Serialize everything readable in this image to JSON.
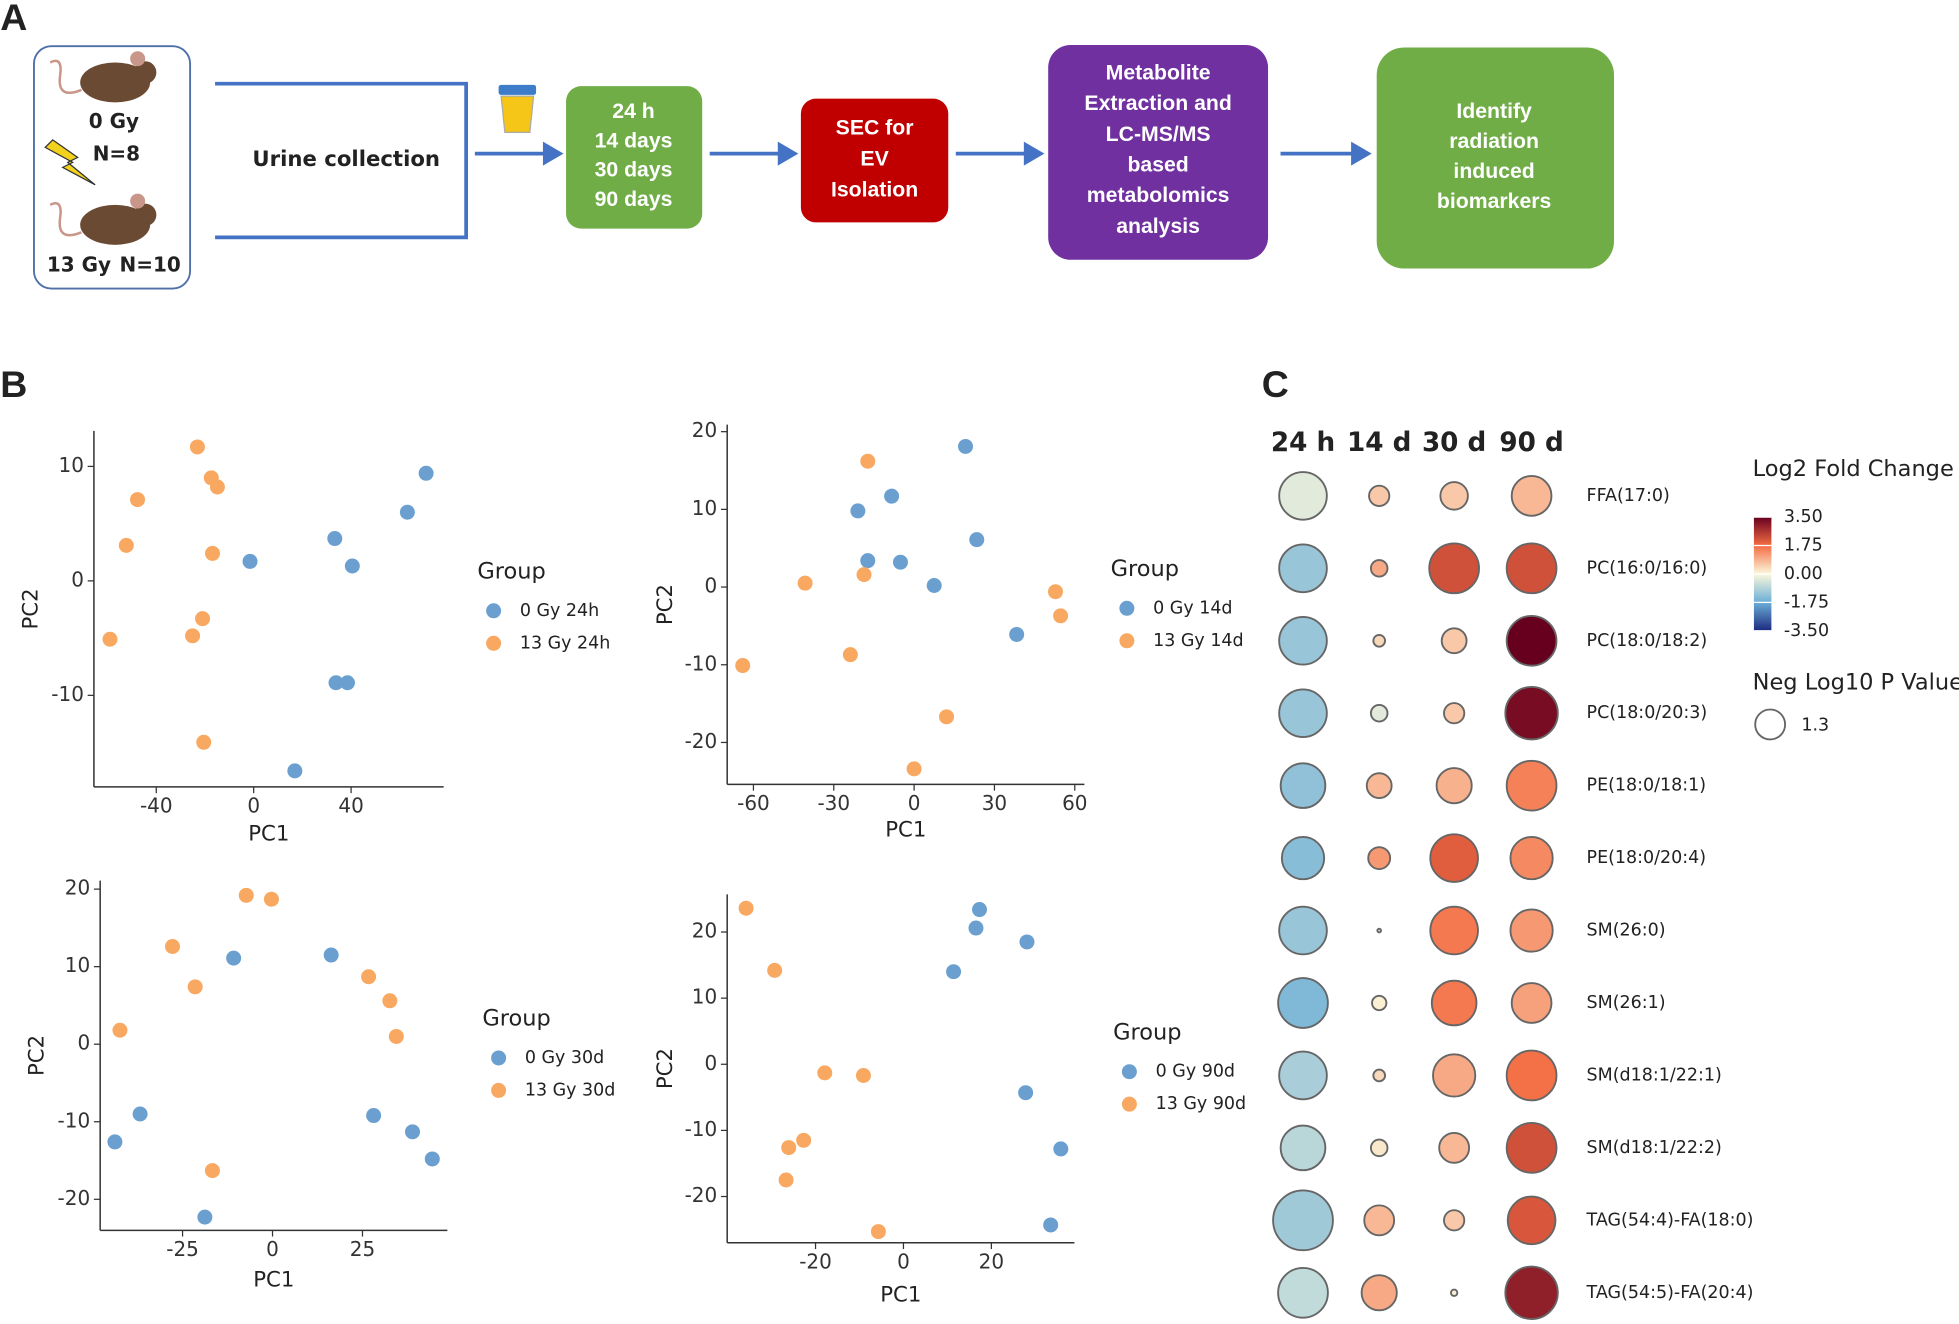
{
  "panel_labels": [
    "A",
    "B",
    "C"
  ],
  "panel_a": {
    "groups": [
      {
        "dose": "0 Gy",
        "n": "N=8"
      },
      {
        "dose": "13 Gy",
        "n": "N=10"
      }
    ],
    "collection": "Urine collection",
    "timepoints": [
      "24 h",
      "14 days",
      "30 days",
      "90 days"
    ],
    "isolation": [
      "SEC for",
      "EV",
      "Isolation"
    ],
    "analysis": [
      "Metabolite",
      "Extraction and",
      "LC-MS/MS",
      "based",
      "metabolomics",
      "analysis"
    ],
    "outcome": [
      "Identify",
      "radiation",
      "induced",
      "biomarkers"
    ]
  },
  "chart_data": [
    {
      "type": "scatter",
      "xlabel": "PC1",
      "ylabel": "PC2",
      "legend_title": "Group",
      "xlim": [
        -65.6,
        78
      ],
      "ylim": [
        -18,
        13.1
      ],
      "xticks": [
        -40,
        0,
        40
      ],
      "yticks": [
        -10,
        0,
        10
      ],
      "series": [
        {
          "name": "0 Gy 24h",
          "color": "#6a9fcf",
          "x": [
            70.8,
            63.1,
            33.3,
            40.5,
            -1.5,
            33.8,
            38.5,
            16.9
          ],
          "values": [
            9.4,
            6.0,
            3.7,
            1.3,
            1.7,
            -8.9,
            -8.9,
            -16.6
          ]
        },
        {
          "name": "13 Gy 24h",
          "color": "#f8a860",
          "x": [
            -23.1,
            -17.4,
            -14.9,
            -47.7,
            -52.3,
            -16.9,
            -21.0,
            -25.1,
            -59.0,
            -20.5
          ],
          "values": [
            11.7,
            9.0,
            8.2,
            7.1,
            3.1,
            2.4,
            -3.3,
            -4.8,
            -5.1,
            -14.1
          ]
        }
      ]
    },
    {
      "type": "scatter",
      "xlabel": "PC1",
      "ylabel": "PC2",
      "legend_title": "Group",
      "xlim": [
        -69.8,
        63.6
      ],
      "ylim": [
        -25.4,
        20.9
      ],
      "xticks": [
        -60,
        -30,
        0,
        30,
        60
      ],
      "yticks": [
        -20,
        -10,
        0,
        10,
        20
      ],
      "series": [
        {
          "name": "0 Gy 14d",
          "color": "#6a9fcf",
          "x": [
            19.2,
            -8.4,
            -21.0,
            23.4,
            -17.3,
            -5.1,
            7.5,
            38.3
          ],
          "values": [
            18.1,
            11.7,
            9.8,
            6.1,
            3.4,
            3.2,
            0.2,
            -6.1
          ]
        },
        {
          "name": "13 Gy 14d",
          "color": "#f8a860",
          "x": [
            -17.3,
            -40.7,
            -18.7,
            52.8,
            54.7,
            -23.8,
            -64.0,
            12.1,
            0
          ],
          "values": [
            16.2,
            0.5,
            1.6,
            -0.6,
            -3.7,
            -8.7,
            -10.1,
            -16.7,
            -23.4
          ]
        }
      ]
    },
    {
      "type": "scatter",
      "xlabel": "PC1",
      "ylabel": "PC2",
      "legend_title": "Group",
      "xlim": [
        -47.9,
        48.6
      ],
      "ylim": [
        -24.0,
        21.1
      ],
      "xticks": [
        -25,
        0,
        25
      ],
      "yticks": [
        -20,
        -10,
        0,
        10,
        20
      ],
      "series": [
        {
          "name": "0 Gy 30d",
          "color": "#6a9fcf",
          "x": [
            -10.8,
            16.3,
            28.1,
            38.9,
            44.4,
            -36.8,
            -43.8,
            -18.8
          ],
          "values": [
            11.1,
            11.5,
            -9.2,
            -11.3,
            -14.8,
            -9.0,
            -12.6,
            -22.3
          ]
        },
        {
          "name": "13 Gy 30d",
          "color": "#f8a860",
          "x": [
            -7.3,
            -0.3,
            -27.8,
            -21.5,
            26.7,
            32.6,
            34.4,
            -42.4,
            -16.7
          ],
          "values": [
            19.2,
            18.7,
            12.6,
            7.4,
            8.7,
            5.6,
            1.0,
            1.8,
            -16.3
          ]
        }
      ]
    },
    {
      "type": "scatter",
      "xlabel": "PC1",
      "ylabel": "PC2",
      "legend_title": "Group",
      "xlim": [
        -40.1,
        38.9
      ],
      "ylim": [
        -27.0,
        25.7
      ],
      "xticks": [
        -20,
        0,
        20
      ],
      "yticks": [
        -20,
        -10,
        0,
        10,
        20
      ],
      "series": [
        {
          "name": "0 Gy 90d",
          "color": "#6a9fcf",
          "x": [
            17.3,
            16.5,
            28.1,
            11.4,
            27.8,
            35.8,
            33.5
          ],
          "values": [
            23.4,
            20.6,
            18.5,
            14.0,
            -4.3,
            -12.8,
            -24.3
          ]
        },
        {
          "name": "13 Gy 90d",
          "color": "#f8a860",
          "x": [
            -35.8,
            -29.3,
            -17.9,
            -9.1,
            -22.7,
            -26.1,
            -26.7,
            -5.7
          ],
          "values": [
            23.6,
            14.2,
            -1.3,
            -1.7,
            -11.5,
            -12.6,
            -17.5,
            -25.3
          ]
        }
      ]
    },
    {
      "type": "bubble",
      "columns": [
        "24 h",
        "14 d",
        "30 d",
        "90 d"
      ],
      "rows": [
        "FFA(17:0)",
        "PC(16:0/16:0)",
        "PC(18:0/18:2)",
        "PC(18:0/20:3)",
        "PE(18:0/18:1)",
        "PE(18:0/20:4)",
        "SM(26:0)",
        "SM(26:1)",
        "SM(d18:1/22:1)",
        "SM(d18:1/22:2)",
        "TAG(54:4)-FA(18:0)",
        "TAG(54:5)-FA(20:4)"
      ],
      "values": [
        [
          -0.3,
          0.6,
          0.6,
          0.8
        ],
        [
          -1.2,
          1.0,
          2.2,
          2.2
        ],
        [
          -1.2,
          0.4,
          0.6,
          3.5
        ],
        [
          -1.2,
          -0.3,
          0.6,
          3.3
        ],
        [
          -1.3,
          0.8,
          0.9,
          1.5
        ],
        [
          -1.4,
          1.2,
          2.0,
          1.4
        ],
        [
          -1.2,
          0.5,
          1.6,
          1.2
        ],
        [
          -1.5,
          0.1,
          1.6,
          1.1
        ],
        [
          -1.0,
          0.4,
          1.0,
          1.7
        ],
        [
          -0.8,
          0.2,
          0.8,
          2.2
        ],
        [
          -1.1,
          0.8,
          0.6,
          2.1
        ],
        [
          -0.7,
          1.0,
          0.1,
          3.0
        ]
      ],
      "sizes": [
        [
          3.3,
          0.6,
          1.1,
          2.3
        ],
        [
          3.3,
          0.4,
          3.6,
          3.6
        ],
        [
          3.3,
          0.2,
          0.9,
          3.6
        ],
        [
          3.3,
          0.4,
          0.6,
          4.0
        ],
        [
          2.9,
          0.9,
          1.8,
          3.6
        ],
        [
          2.6,
          0.7,
          3.3,
          2.6
        ],
        [
          3.3,
          0.02,
          3.3,
          2.6
        ],
        [
          3.6,
          0.3,
          2.9,
          2.3
        ],
        [
          3.3,
          0.2,
          2.6,
          3.6
        ],
        [
          2.9,
          0.4,
          1.3,
          3.6
        ],
        [
          5.2,
          1.3,
          0.6,
          3.3
        ],
        [
          3.6,
          1.8,
          0.06,
          4.0
        ]
      ],
      "color_title": "Log2 Fold Change",
      "clim": [
        -3.5,
        3.5
      ],
      "colormap": [
        "#1c2a80",
        "#6baed6",
        "#fbf8dc",
        "#f46d43",
        "#67001f"
      ],
      "cticks": [
        {
          "value": 3.5,
          "label": "3.50"
        },
        {
          "value": 1.75,
          "label": "1.75"
        },
        {
          "value": 0,
          "label": "0.00"
        },
        {
          "value": -1.75,
          "label": "-1.75"
        },
        {
          "value": -3.5,
          "label": "-3.50"
        }
      ],
      "size_title": "Neg Log10 P Value",
      "size_legend": [
        1.3
      ]
    }
  ]
}
